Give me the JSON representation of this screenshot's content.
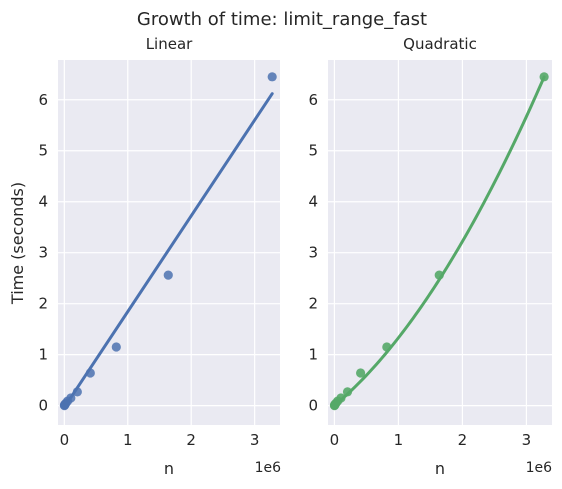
{
  "figure": {
    "suptitle": "Growth of time: limit_range_fast"
  },
  "chart_data": [
    {
      "type": "scatter",
      "title": "Linear",
      "xlabel": "n",
      "ylabel": "Time (seconds)",
      "x_offset_label": "1e6",
      "xlim": [
        -0.1,
        3.4
      ],
      "ylim": [
        -0.38,
        6.78
      ],
      "xticks": [
        0,
        1,
        2,
        3
      ],
      "yticks": [
        0,
        1,
        2,
        3,
        4,
        5,
        6
      ],
      "grid": true,
      "color": "#4c72b0",
      "points": {
        "x": [
          0.0016,
          0.0032,
          0.0064,
          0.0128,
          0.0256,
          0.0512,
          0.1024,
          0.2048,
          0.4096,
          0.8192,
          1.6384,
          3.2768
        ],
        "y": [
          0.0,
          0.01,
          0.02,
          0.03,
          0.05,
          0.09,
          0.15,
          0.27,
          0.64,
          1.15,
          2.56,
          6.45
        ]
      },
      "fit": {
        "kind": "linear",
        "x": [
          0.0016,
          3.2768
        ],
        "y": [
          -0.03,
          6.12
        ]
      }
    },
    {
      "type": "scatter",
      "title": "Quadratic",
      "xlabel": "n",
      "ylabel": "",
      "x_offset_label": "1e6",
      "xlim": [
        -0.1,
        3.4
      ],
      "ylim": [
        -0.38,
        6.78
      ],
      "xticks": [
        0,
        1,
        2,
        3
      ],
      "yticks": [
        0,
        1,
        2,
        3,
        4,
        5,
        6
      ],
      "grid": true,
      "color": "#55a868",
      "points": {
        "x": [
          0.0016,
          0.0032,
          0.0064,
          0.0128,
          0.0256,
          0.0512,
          0.1024,
          0.2048,
          0.4096,
          0.8192,
          1.6384,
          3.2768
        ],
        "y": [
          0.0,
          0.01,
          0.02,
          0.03,
          0.05,
          0.09,
          0.15,
          0.27,
          0.64,
          1.15,
          2.56,
          6.45
        ]
      },
      "fit": {
        "kind": "quadratic",
        "coefficients": [
          0.0,
          1.05,
          0.28
        ],
        "x_range": [
          0.0016,
          3.2768
        ]
      }
    }
  ]
}
